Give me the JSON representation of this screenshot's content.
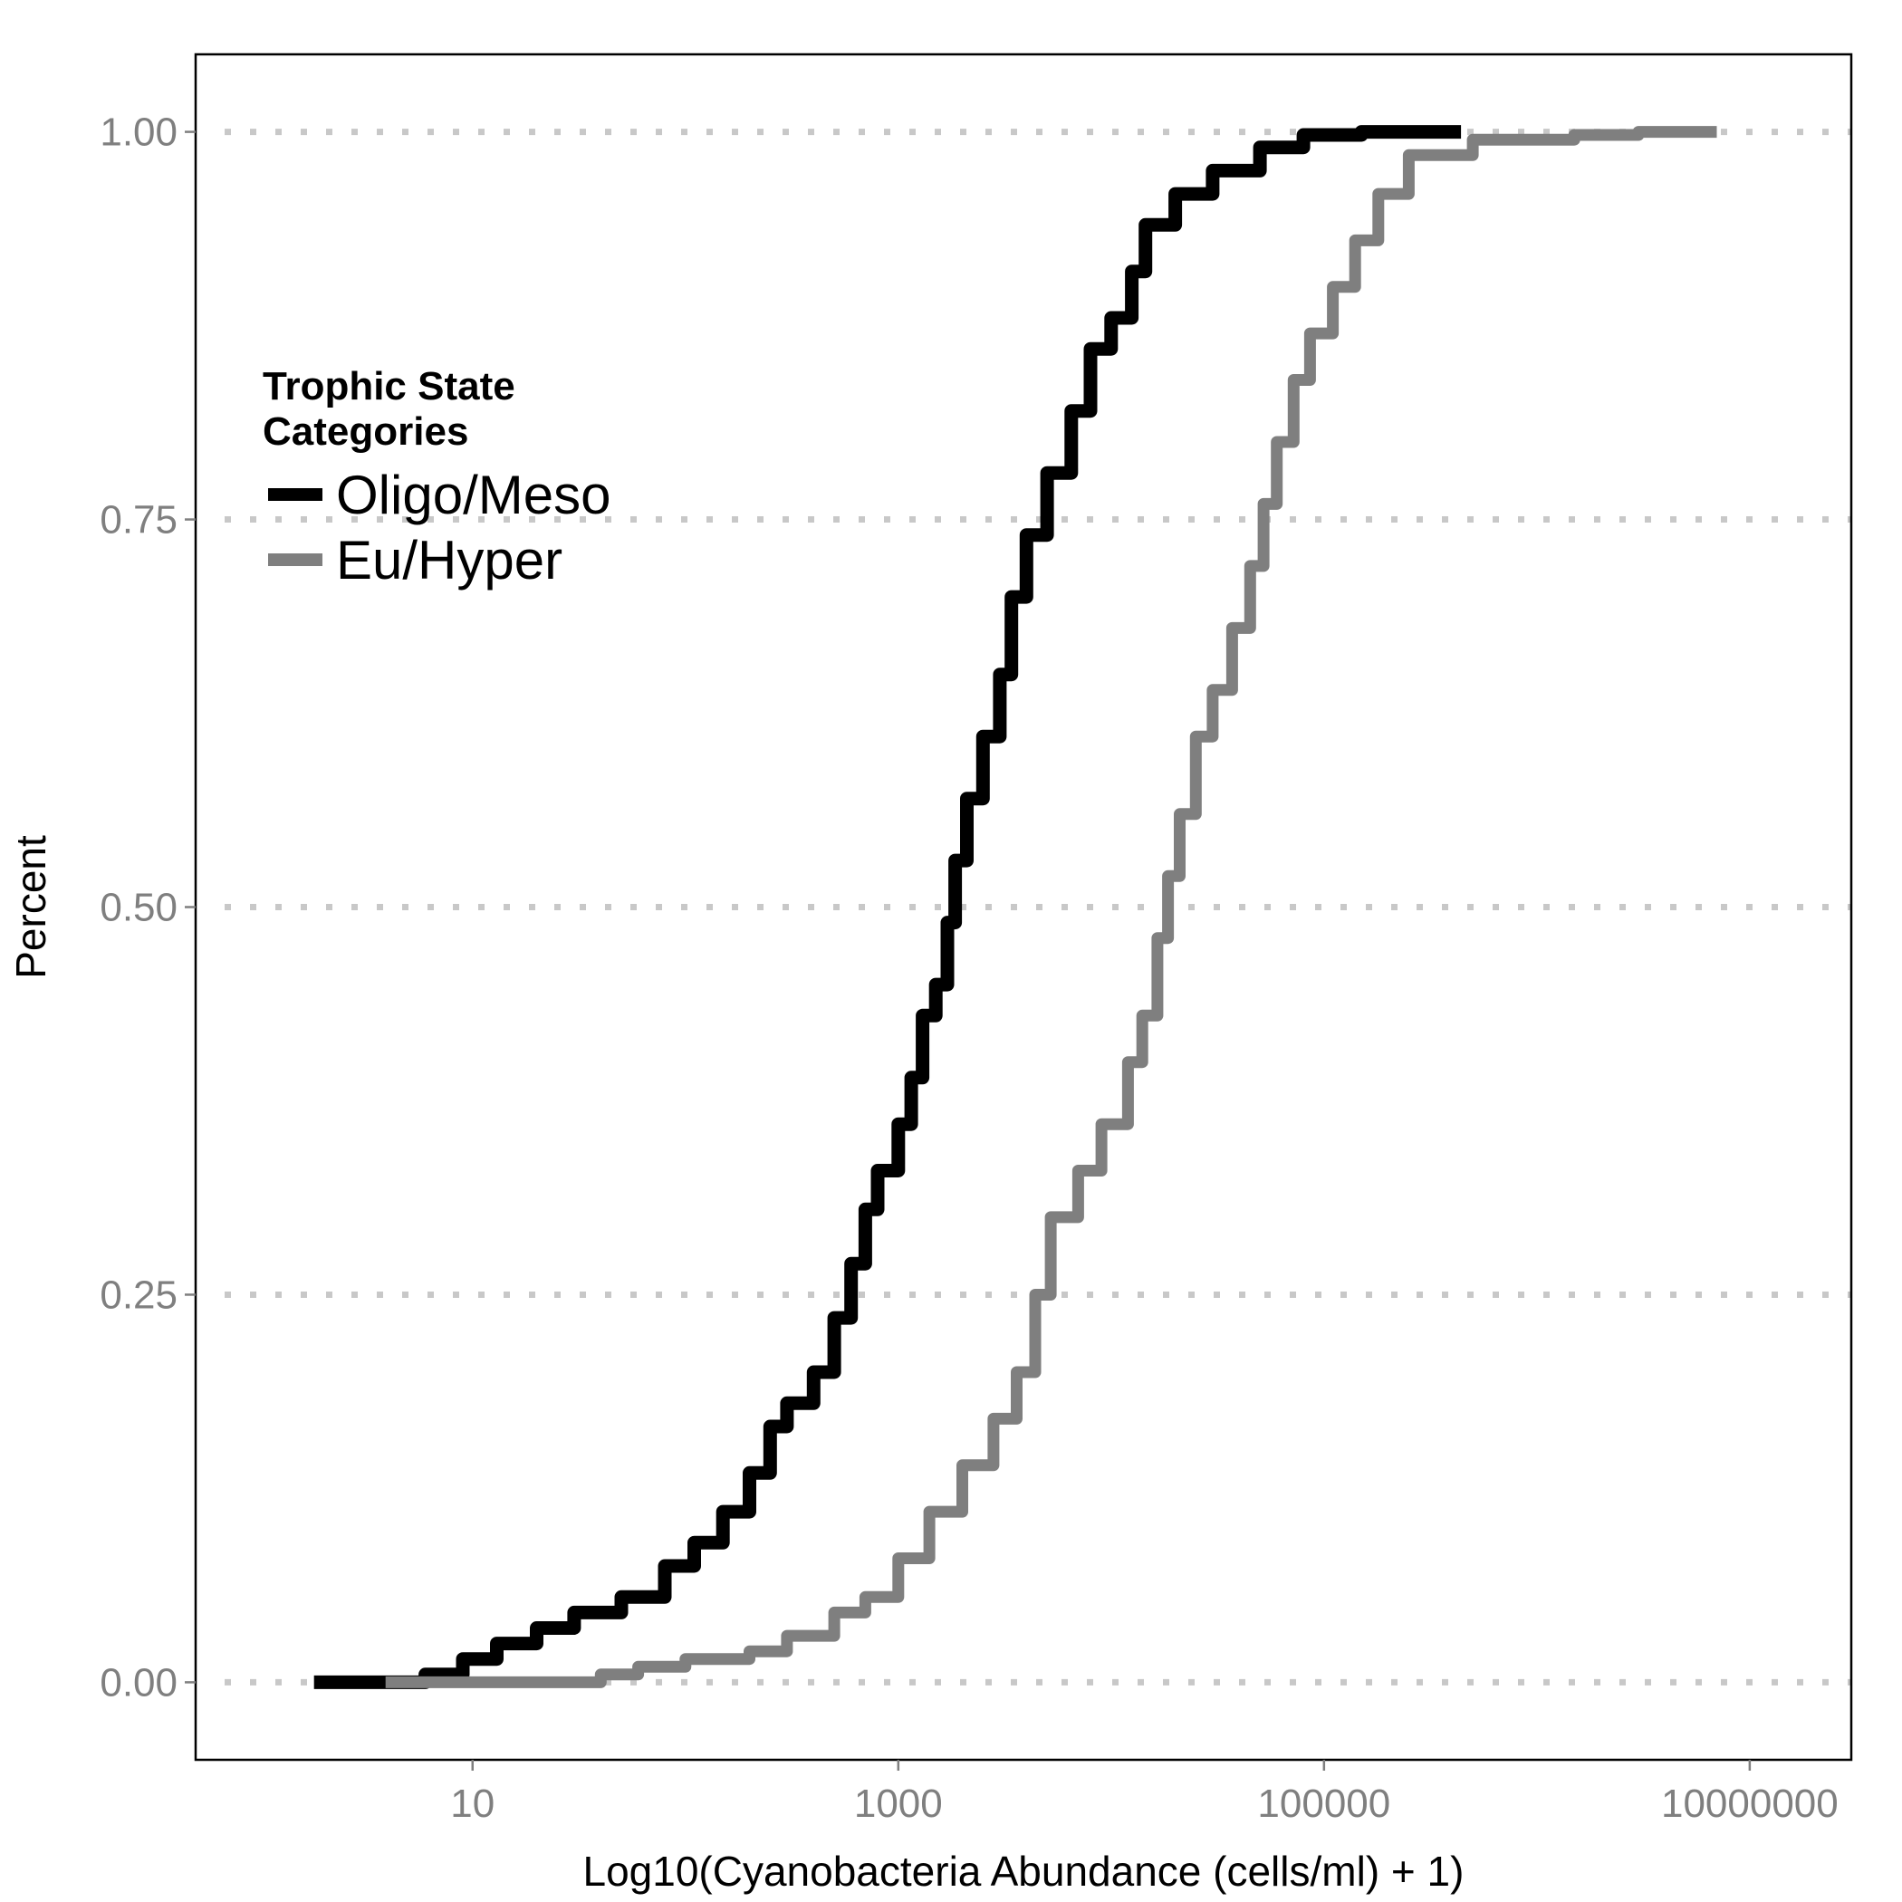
{
  "chart_data": {
    "type": "line",
    "xlabel": "Log10(Cyanobacteria Abundance (cells/ml) + 1)",
    "ylabel": "Percent",
    "x_scale": "log10",
    "xlim": [
      0.5,
      30000000
    ],
    "ylim": [
      -0.05,
      1.05
    ],
    "x_ticks": [
      {
        "value": 10,
        "label": "10"
      },
      {
        "value": 1000,
        "label": "1000"
      },
      {
        "value": 100000,
        "label": "100000"
      },
      {
        "value": 10000000,
        "label": "10000000"
      }
    ],
    "y_ticks": [
      {
        "value": 0,
        "label": "0.00"
      },
      {
        "value": 0.25,
        "label": "0.25"
      },
      {
        "value": 0.5,
        "label": "0.50"
      },
      {
        "value": 0.75,
        "label": "0.75"
      },
      {
        "value": 1,
        "label": "1.00"
      }
    ],
    "grid": "horizontal dotted at y ticks",
    "legend": {
      "title_lines": [
        "Trophic State",
        "Categories"
      ],
      "position": "top-left"
    },
    "series": [
      {
        "name": "Oligo/Meso",
        "color": "#000000",
        "points": [
          [
            1.8,
            0
          ],
          [
            4,
            0
          ],
          [
            6,
            0.005
          ],
          [
            9,
            0.015
          ],
          [
            13,
            0.025
          ],
          [
            20,
            0.035
          ],
          [
            30,
            0.045
          ],
          [
            50,
            0.055
          ],
          [
            80,
            0.075
          ],
          [
            110,
            0.09
          ],
          [
            150,
            0.11
          ],
          [
            200,
            0.135
          ],
          [
            250,
            0.165
          ],
          [
            300,
            0.18
          ],
          [
            400,
            0.2
          ],
          [
            500,
            0.235
          ],
          [
            600,
            0.27
          ],
          [
            700,
            0.305
          ],
          [
            800,
            0.33
          ],
          [
            1000,
            0.36
          ],
          [
            1150,
            0.39
          ],
          [
            1300,
            0.43
          ],
          [
            1500,
            0.45
          ],
          [
            1700,
            0.49
          ],
          [
            1850,
            0.53
          ],
          [
            2100,
            0.57
          ],
          [
            2500,
            0.61
          ],
          [
            3000,
            0.65
          ],
          [
            3400,
            0.7
          ],
          [
            4000,
            0.74
          ],
          [
            5000,
            0.78
          ],
          [
            6500,
            0.82
          ],
          [
            8000,
            0.86
          ],
          [
            10000,
            0.88
          ],
          [
            12500,
            0.91
          ],
          [
            14500,
            0.94
          ],
          [
            20000,
            0.96
          ],
          [
            30000,
            0.975
          ],
          [
            50000,
            0.99
          ],
          [
            80000,
            0.998
          ],
          [
            150000,
            1
          ],
          [
            440000,
            1
          ]
        ]
      },
      {
        "name": "Eu/Hyper",
        "color": "#7f7f7f",
        "points": [
          [
            3.9,
            0
          ],
          [
            20,
            0
          ],
          [
            40,
            0.005
          ],
          [
            60,
            0.01
          ],
          [
            100,
            0.015
          ],
          [
            200,
            0.02
          ],
          [
            300,
            0.03
          ],
          [
            500,
            0.045
          ],
          [
            700,
            0.055
          ],
          [
            1000,
            0.08
          ],
          [
            1400,
            0.11
          ],
          [
            2000,
            0.14
          ],
          [
            2800,
            0.17
          ],
          [
            3600,
            0.2
          ],
          [
            4400,
            0.25
          ],
          [
            5200,
            0.3
          ],
          [
            7000,
            0.33
          ],
          [
            9000,
            0.36
          ],
          [
            12000,
            0.4
          ],
          [
            14000,
            0.43
          ],
          [
            16500,
            0.48
          ],
          [
            18500,
            0.52
          ],
          [
            21000,
            0.56
          ],
          [
            25000,
            0.61
          ],
          [
            30000,
            0.64
          ],
          [
            37000,
            0.68
          ],
          [
            45000,
            0.72
          ],
          [
            52000,
            0.76
          ],
          [
            60000,
            0.8
          ],
          [
            72000,
            0.84
          ],
          [
            86000,
            0.87
          ],
          [
            110000,
            0.9
          ],
          [
            140000,
            0.93
          ],
          [
            180000,
            0.96
          ],
          [
            250000,
            0.985
          ],
          [
            500000,
            0.995
          ],
          [
            1500000,
            0.998
          ],
          [
            3000000,
            1
          ],
          [
            7000000,
            1
          ]
        ]
      }
    ]
  }
}
